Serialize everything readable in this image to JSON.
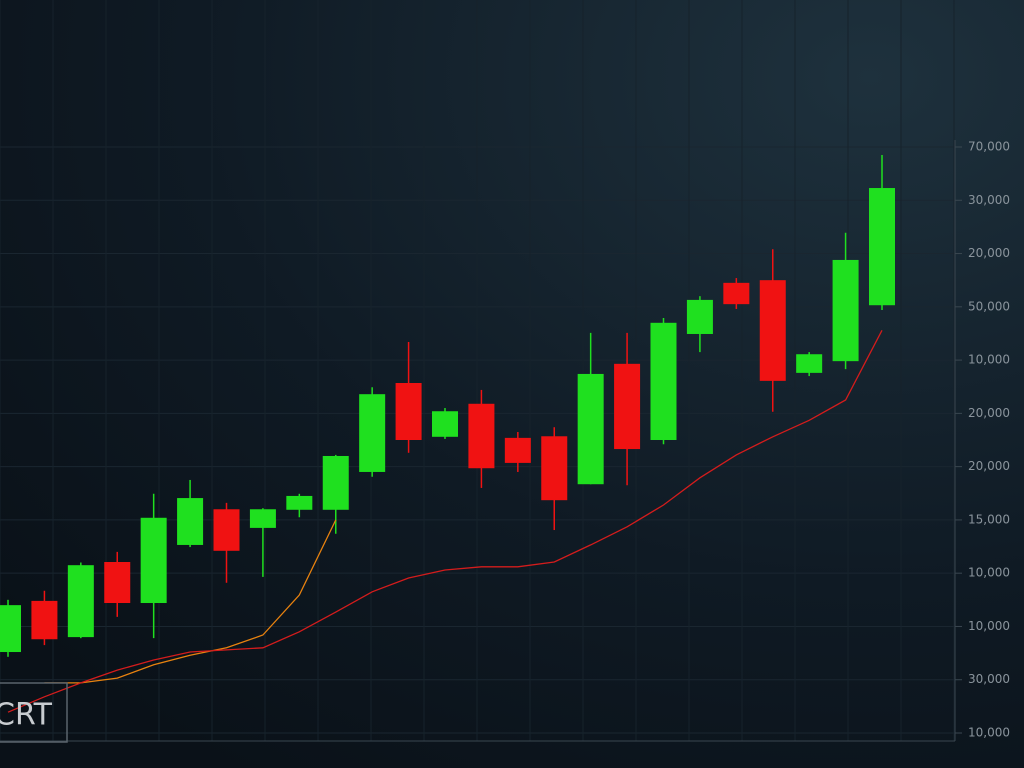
{
  "chart_data": {
    "type": "candlestick",
    "watermark": "CRT",
    "categories": [
      null,
      null,
      null,
      null,
      null,
      null,
      null,
      null,
      null,
      null,
      null,
      null,
      null,
      null,
      null,
      null,
      null,
      null,
      null,
      null,
      null,
      null,
      null,
      null,
      null
    ],
    "open": [
      1.52,
      2.48,
      1.8,
      3.21,
      2.44,
      3.53,
      4.2,
      3.85,
      4.19,
      4.19,
      4.9,
      6.57,
      5.56,
      6.18,
      5.54,
      5.57,
      4.67,
      6.93,
      5.5,
      7.49,
      8.45,
      8.5,
      6.76,
      6.98,
      8.03
    ],
    "high": [
      2.5,
      2.67,
      3.2,
      3.4,
      4.49,
      4.75,
      4.32,
      4.22,
      4.49,
      5.22,
      6.49,
      7.34,
      6.1,
      6.44,
      5.65,
      5.74,
      7.51,
      7.51,
      7.79,
      8.2,
      8.54,
      9.08,
      7.15,
      9.39,
      10.85
    ],
    "low": [
      1.43,
      1.65,
      1.78,
      2.18,
      1.78,
      3.49,
      2.82,
      2.93,
      4.05,
      3.74,
      4.81,
      5.26,
      5.52,
      4.6,
      4.9,
      3.81,
      4.67,
      4.65,
      5.42,
      7.15,
      7.96,
      6.03,
      6.7,
      6.83,
      7.94
    ],
    "close": [
      2.4,
      1.76,
      3.15,
      2.44,
      4.04,
      4.41,
      3.42,
      4.2,
      4.45,
      5.2,
      6.36,
      5.5,
      6.04,
      4.97,
      5.07,
      4.37,
      6.74,
      5.33,
      7.7,
      8.13,
      8.05,
      6.61,
      7.11,
      8.88,
      10.23
    ],
    "up_color": "#1fe01f",
    "down_color": "#f01212",
    "lines": [
      {
        "color": "#e8820f",
        "values": [
          null,
          0.94,
          0.94,
          1.03,
          1.28,
          1.46,
          1.6,
          1.84,
          2.59,
          4.0,
          null,
          null,
          null,
          null,
          null,
          null,
          null,
          null,
          null,
          null,
          null,
          null,
          null,
          null,
          null
        ]
      },
      {
        "color": "#d41c1c",
        "values": [
          0.39,
          0.68,
          0.94,
          1.18,
          1.37,
          1.52,
          1.56,
          1.6,
          1.9,
          2.27,
          2.65,
          2.91,
          3.06,
          3.12,
          3.12,
          3.21,
          3.53,
          3.87,
          4.28,
          4.79,
          5.22,
          5.56,
          5.87,
          6.25,
          7.56
        ]
      }
    ],
    "ylim": [
      0,
      11
    ],
    "yticks": [
      {
        "value": 0,
        "label": "10,000"
      },
      {
        "value": 1,
        "label": "30,000"
      },
      {
        "value": 2,
        "label": "10,000"
      },
      {
        "value": 3,
        "label": "10,000"
      },
      {
        "value": 4,
        "label": "15,000"
      },
      {
        "value": 5,
        "label": "20,000"
      },
      {
        "value": 6,
        "label": "20,000"
      },
      {
        "value": 7,
        "label": "10,000"
      },
      {
        "value": 8,
        "label": "50,000"
      },
      {
        "value": 9,
        "label": "20,000"
      },
      {
        "value": 10,
        "label": "30,000"
      },
      {
        "value": 11,
        "label": "70,000"
      }
    ],
    "grid": true
  }
}
